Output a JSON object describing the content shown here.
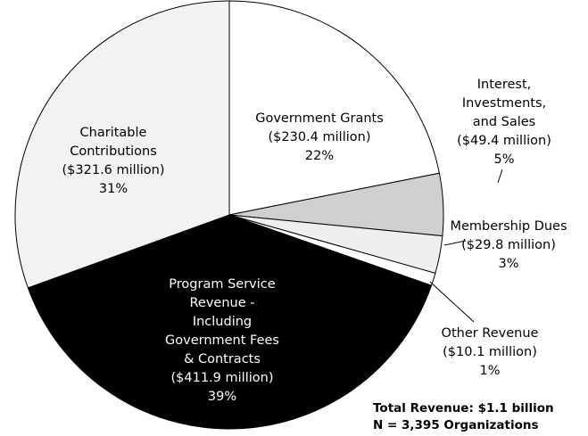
{
  "chart_data": {
    "type": "pie",
    "title": "",
    "slices": [
      {
        "label_lines": [
          "Government Grants",
          "($230.4 million)",
          "22%"
        ],
        "value": 230.4,
        "percent": 22,
        "color": "#ffffff"
      },
      {
        "label_lines": [
          "Interest,",
          "Investments,",
          "and Sales",
          "($49.4 million)",
          "5%"
        ],
        "value": 49.4,
        "percent": 5,
        "color": "#d0d0d0"
      },
      {
        "label_lines": [
          "Membership Dues",
          "($29.8 million)",
          "3%"
        ],
        "value": 29.8,
        "percent": 3,
        "color": "#efefef"
      },
      {
        "label_lines": [
          "Other Revenue",
          "($10.1 million)",
          "1%"
        ],
        "value": 10.1,
        "percent": 1,
        "color": "#ffffff"
      },
      {
        "label_lines": [
          "Program Service",
          "Revenue -",
          "Including",
          "Government Fees",
          "& Contracts",
          "($411.9 million)",
          "39%"
        ],
        "value": 411.9,
        "percent": 39,
        "color": "#000000",
        "text_color": "#ffffff"
      },
      {
        "label_lines": [
          "Charitable",
          "Contributions",
          "($321.6 million)",
          "31%"
        ],
        "value": 321.6,
        "percent": 31,
        "color": "#f2f2f2"
      }
    ],
    "start_angle_deg": 90,
    "direction": "clockwise",
    "notes": [
      "Total Revenue: $1.1 billion",
      "N = 3,395 Organizations"
    ]
  }
}
